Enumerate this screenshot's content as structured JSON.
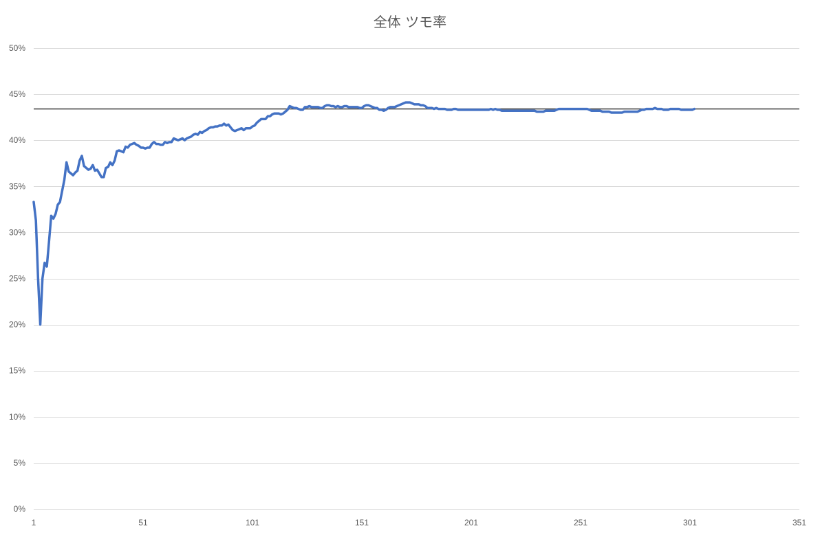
{
  "chart_data": {
    "type": "line",
    "title": "全体 ツモ率",
    "xlabel": "",
    "ylabel": "",
    "xlim": [
      1,
      351
    ],
    "ylim": [
      0,
      0.5
    ],
    "x_ticks": [
      1,
      51,
      101,
      151,
      201,
      251,
      301,
      351
    ],
    "x_tick_labels": [
      "1",
      "51",
      "101",
      "151",
      "201",
      "251",
      "301",
      "351"
    ],
    "y_ticks": [
      0,
      0.05,
      0.1,
      0.15,
      0.2,
      0.25,
      0.3,
      0.35,
      0.4,
      0.45,
      0.5
    ],
    "y_tick_labels": [
      "0%",
      "5%",
      "10%",
      "15%",
      "20%",
      "25%",
      "30%",
      "35%",
      "40%",
      "45%",
      "50%"
    ],
    "grid": true,
    "legend": "none",
    "reference_line": {
      "y": 0.434,
      "color": "#404040"
    },
    "series": [
      {
        "color": "#4472c4",
        "points": [
          [
            1,
            0.333
          ],
          [
            2,
            0.313
          ],
          [
            3,
            0.25
          ],
          [
            4,
            0.2
          ],
          [
            5,
            0.25
          ],
          [
            6,
            0.267
          ],
          [
            7,
            0.263
          ],
          [
            8,
            0.29
          ],
          [
            9,
            0.318
          ],
          [
            10,
            0.315
          ],
          [
            11,
            0.32
          ],
          [
            12,
            0.33
          ],
          [
            13,
            0.333
          ],
          [
            14,
            0.345
          ],
          [
            15,
            0.357
          ],
          [
            16,
            0.376
          ],
          [
            17,
            0.366
          ],
          [
            18,
            0.364
          ],
          [
            19,
            0.362
          ],
          [
            20,
            0.365
          ],
          [
            21,
            0.367
          ],
          [
            22,
            0.378
          ],
          [
            23,
            0.383
          ],
          [
            24,
            0.372
          ],
          [
            25,
            0.37
          ],
          [
            26,
            0.368
          ],
          [
            27,
            0.369
          ],
          [
            28,
            0.373
          ],
          [
            29,
            0.367
          ],
          [
            30,
            0.368
          ],
          [
            31,
            0.364
          ],
          [
            32,
            0.36
          ],
          [
            33,
            0.36
          ],
          [
            34,
            0.37
          ],
          [
            35,
            0.371
          ],
          [
            36,
            0.376
          ],
          [
            37,
            0.373
          ],
          [
            38,
            0.378
          ],
          [
            39,
            0.388
          ],
          [
            40,
            0.389
          ],
          [
            41,
            0.388
          ],
          [
            42,
            0.387
          ],
          [
            43,
            0.393
          ],
          [
            44,
            0.392
          ],
          [
            45,
            0.395
          ],
          [
            46,
            0.396
          ],
          [
            47,
            0.397
          ],
          [
            48,
            0.395
          ],
          [
            49,
            0.394
          ],
          [
            50,
            0.392
          ],
          [
            51,
            0.392
          ],
          [
            52,
            0.391
          ],
          [
            53,
            0.392
          ],
          [
            54,
            0.392
          ],
          [
            55,
            0.396
          ],
          [
            56,
            0.398
          ],
          [
            57,
            0.396
          ],
          [
            58,
            0.396
          ],
          [
            59,
            0.395
          ],
          [
            60,
            0.395
          ],
          [
            61,
            0.398
          ],
          [
            62,
            0.397
          ],
          [
            63,
            0.398
          ],
          [
            64,
            0.398
          ],
          [
            65,
            0.402
          ],
          [
            66,
            0.401
          ],
          [
            67,
            0.4
          ],
          [
            68,
            0.401
          ],
          [
            69,
            0.402
          ],
          [
            70,
            0.4
          ],
          [
            71,
            0.402
          ],
          [
            72,
            0.403
          ],
          [
            73,
            0.404
          ],
          [
            74,
            0.406
          ],
          [
            75,
            0.407
          ],
          [
            76,
            0.406
          ],
          [
            77,
            0.409
          ],
          [
            78,
            0.408
          ],
          [
            79,
            0.41
          ],
          [
            80,
            0.411
          ],
          [
            81,
            0.413
          ],
          [
            82,
            0.414
          ],
          [
            83,
            0.414
          ],
          [
            84,
            0.415
          ],
          [
            85,
            0.415
          ],
          [
            86,
            0.416
          ],
          [
            87,
            0.416
          ],
          [
            88,
            0.418
          ],
          [
            89,
            0.416
          ],
          [
            90,
            0.417
          ],
          [
            91,
            0.414
          ],
          [
            92,
            0.411
          ],
          [
            93,
            0.41
          ],
          [
            94,
            0.411
          ],
          [
            95,
            0.412
          ],
          [
            96,
            0.413
          ],
          [
            97,
            0.411
          ],
          [
            98,
            0.413
          ],
          [
            99,
            0.413
          ],
          [
            100,
            0.413
          ],
          [
            101,
            0.415
          ],
          [
            102,
            0.416
          ],
          [
            103,
            0.419
          ],
          [
            104,
            0.421
          ],
          [
            105,
            0.423
          ],
          [
            106,
            0.423
          ],
          [
            107,
            0.423
          ],
          [
            108,
            0.426
          ],
          [
            109,
            0.426
          ],
          [
            110,
            0.428
          ],
          [
            111,
            0.429
          ],
          [
            112,
            0.429
          ],
          [
            113,
            0.429
          ],
          [
            114,
            0.428
          ],
          [
            115,
            0.429
          ],
          [
            116,
            0.431
          ],
          [
            117,
            0.433
          ],
          [
            118,
            0.437
          ],
          [
            119,
            0.436
          ],
          [
            120,
            0.435
          ],
          [
            121,
            0.435
          ],
          [
            122,
            0.434
          ],
          [
            123,
            0.433
          ],
          [
            124,
            0.433
          ],
          [
            125,
            0.436
          ],
          [
            126,
            0.436
          ],
          [
            127,
            0.437
          ],
          [
            128,
            0.436
          ],
          [
            129,
            0.436
          ],
          [
            130,
            0.436
          ],
          [
            131,
            0.436
          ],
          [
            132,
            0.435
          ],
          [
            133,
            0.435
          ],
          [
            134,
            0.437
          ],
          [
            135,
            0.438
          ],
          [
            136,
            0.438
          ],
          [
            137,
            0.437
          ],
          [
            138,
            0.437
          ],
          [
            139,
            0.436
          ],
          [
            140,
            0.437
          ],
          [
            141,
            0.436
          ],
          [
            142,
            0.436
          ],
          [
            143,
            0.437
          ],
          [
            144,
            0.437
          ],
          [
            145,
            0.436
          ],
          [
            146,
            0.436
          ],
          [
            147,
            0.436
          ],
          [
            148,
            0.436
          ],
          [
            149,
            0.436
          ],
          [
            150,
            0.435
          ],
          [
            151,
            0.435
          ],
          [
            152,
            0.437
          ],
          [
            153,
            0.438
          ],
          [
            154,
            0.438
          ],
          [
            155,
            0.437
          ],
          [
            156,
            0.436
          ],
          [
            157,
            0.435
          ],
          [
            158,
            0.435
          ],
          [
            159,
            0.433
          ],
          [
            160,
            0.433
          ],
          [
            161,
            0.432
          ],
          [
            162,
            0.433
          ],
          [
            163,
            0.435
          ],
          [
            164,
            0.436
          ],
          [
            165,
            0.436
          ],
          [
            166,
            0.436
          ],
          [
            167,
            0.437
          ],
          [
            168,
            0.438
          ],
          [
            169,
            0.439
          ],
          [
            170,
            0.44
          ],
          [
            171,
            0.441
          ],
          [
            172,
            0.441
          ],
          [
            173,
            0.441
          ],
          [
            174,
            0.44
          ],
          [
            175,
            0.439
          ],
          [
            176,
            0.439
          ],
          [
            177,
            0.439
          ],
          [
            178,
            0.438
          ],
          [
            179,
            0.438
          ],
          [
            180,
            0.437
          ],
          [
            181,
            0.435
          ],
          [
            182,
            0.435
          ],
          [
            183,
            0.435
          ],
          [
            184,
            0.434
          ],
          [
            185,
            0.435
          ],
          [
            186,
            0.434
          ],
          [
            187,
            0.434
          ],
          [
            188,
            0.434
          ],
          [
            189,
            0.434
          ],
          [
            190,
            0.433
          ],
          [
            191,
            0.433
          ],
          [
            192,
            0.433
          ],
          [
            193,
            0.434
          ],
          [
            194,
            0.434
          ],
          [
            195,
            0.433
          ],
          [
            196,
            0.433
          ],
          [
            197,
            0.433
          ],
          [
            198,
            0.433
          ],
          [
            199,
            0.433
          ],
          [
            200,
            0.433
          ],
          [
            201,
            0.433
          ],
          [
            202,
            0.433
          ],
          [
            203,
            0.433
          ],
          [
            204,
            0.433
          ],
          [
            205,
            0.433
          ],
          [
            206,
            0.433
          ],
          [
            207,
            0.433
          ],
          [
            208,
            0.433
          ],
          [
            209,
            0.433
          ],
          [
            210,
            0.434
          ],
          [
            211,
            0.433
          ],
          [
            212,
            0.434
          ],
          [
            213,
            0.433
          ],
          [
            214,
            0.433
          ],
          [
            215,
            0.432
          ],
          [
            216,
            0.432
          ],
          [
            217,
            0.432
          ],
          [
            218,
            0.432
          ],
          [
            219,
            0.432
          ],
          [
            220,
            0.432
          ],
          [
            221,
            0.432
          ],
          [
            222,
            0.432
          ],
          [
            223,
            0.432
          ],
          [
            224,
            0.432
          ],
          [
            225,
            0.432
          ],
          [
            226,
            0.432
          ],
          [
            227,
            0.432
          ],
          [
            228,
            0.432
          ],
          [
            229,
            0.432
          ],
          [
            230,
            0.432
          ],
          [
            231,
            0.431
          ],
          [
            232,
            0.431
          ],
          [
            233,
            0.431
          ],
          [
            234,
            0.431
          ],
          [
            235,
            0.432
          ],
          [
            236,
            0.432
          ],
          [
            237,
            0.432
          ],
          [
            238,
            0.432
          ],
          [
            239,
            0.432
          ],
          [
            240,
            0.433
          ],
          [
            241,
            0.434
          ],
          [
            242,
            0.434
          ],
          [
            243,
            0.434
          ],
          [
            244,
            0.434
          ],
          [
            245,
            0.434
          ],
          [
            246,
            0.434
          ],
          [
            247,
            0.434
          ],
          [
            248,
            0.434
          ],
          [
            249,
            0.434
          ],
          [
            250,
            0.434
          ],
          [
            251,
            0.434
          ],
          [
            252,
            0.434
          ],
          [
            253,
            0.434
          ],
          [
            254,
            0.434
          ],
          [
            255,
            0.433
          ],
          [
            256,
            0.432
          ],
          [
            257,
            0.432
          ],
          [
            258,
            0.432
          ],
          [
            259,
            0.432
          ],
          [
            260,
            0.432
          ],
          [
            261,
            0.431
          ],
          [
            262,
            0.431
          ],
          [
            263,
            0.431
          ],
          [
            264,
            0.431
          ],
          [
            265,
            0.43
          ],
          [
            266,
            0.43
          ],
          [
            267,
            0.43
          ],
          [
            268,
            0.43
          ],
          [
            269,
            0.43
          ],
          [
            270,
            0.43
          ],
          [
            271,
            0.431
          ],
          [
            272,
            0.431
          ],
          [
            273,
            0.431
          ],
          [
            274,
            0.431
          ],
          [
            275,
            0.431
          ],
          [
            276,
            0.431
          ],
          [
            277,
            0.431
          ],
          [
            278,
            0.432
          ],
          [
            279,
            0.433
          ],
          [
            280,
            0.433
          ],
          [
            281,
            0.434
          ],
          [
            282,
            0.434
          ],
          [
            283,
            0.434
          ],
          [
            284,
            0.434
          ],
          [
            285,
            0.435
          ],
          [
            286,
            0.434
          ],
          [
            287,
            0.434
          ],
          [
            288,
            0.434
          ],
          [
            289,
            0.433
          ],
          [
            290,
            0.433
          ],
          [
            291,
            0.433
          ],
          [
            292,
            0.434
          ],
          [
            293,
            0.434
          ],
          [
            294,
            0.434
          ],
          [
            295,
            0.434
          ],
          [
            296,
            0.434
          ],
          [
            297,
            0.433
          ],
          [
            298,
            0.433
          ],
          [
            299,
            0.433
          ],
          [
            300,
            0.433
          ],
          [
            301,
            0.433
          ],
          [
            302,
            0.433
          ],
          [
            303,
            0.434
          ]
        ]
      }
    ]
  }
}
